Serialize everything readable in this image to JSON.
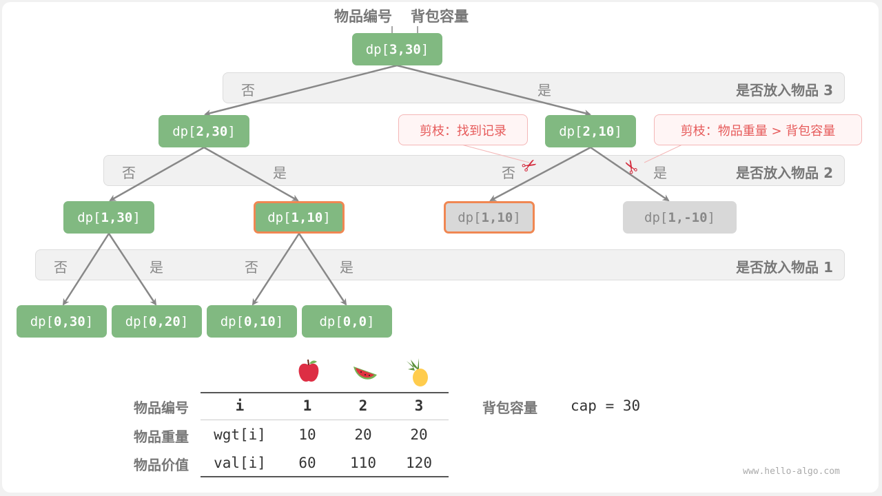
{
  "header": {
    "item_label": "物品编号",
    "capacity_label": "背包容量"
  },
  "node_prefix": "dp[",
  "node_suffix": "]",
  "nodes": {
    "root": "3,30",
    "l2a": "2,30",
    "l2b": "2,10",
    "l3a": "1,30",
    "l3b": "1,10",
    "l3c": "1,10",
    "l3d": "1,-10",
    "l4a": "0,30",
    "l4b": "0,20",
    "l4c": "0,10",
    "l4d": "0,0"
  },
  "bands": [
    {
      "label": "是否放入物品 3",
      "no": "否",
      "yes": "是"
    },
    {
      "label": "是否放入物品 2",
      "no": "否",
      "yes": "是"
    },
    {
      "label": "是否放入物品 1",
      "no": "否",
      "yes": "是"
    }
  ],
  "callouts": {
    "found": "剪枝：找到记录",
    "overweight": "剪枝：物品重量 > 背包容量"
  },
  "icons": [
    "apple-icon",
    "watermelon-icon",
    "pineapple-icon",
    "scissors-icon"
  ],
  "colors": {
    "node": "#81b981",
    "pruned_node": "#d8d8d8",
    "highlight": "#f08752",
    "callout": "#e65a5a"
  },
  "table": {
    "row_labels": [
      "物品编号",
      "物品重量",
      "物品价值"
    ],
    "rows": [
      [
        "i",
        "1",
        "2",
        "3"
      ],
      [
        "wgt[i]",
        "10",
        "20",
        "20"
      ],
      [
        "val[i]",
        "60",
        "110",
        "120"
      ]
    ]
  },
  "capacity": {
    "label": "背包容量",
    "value": "cap = 30"
  },
  "watermark": "www.hello-algo.com"
}
